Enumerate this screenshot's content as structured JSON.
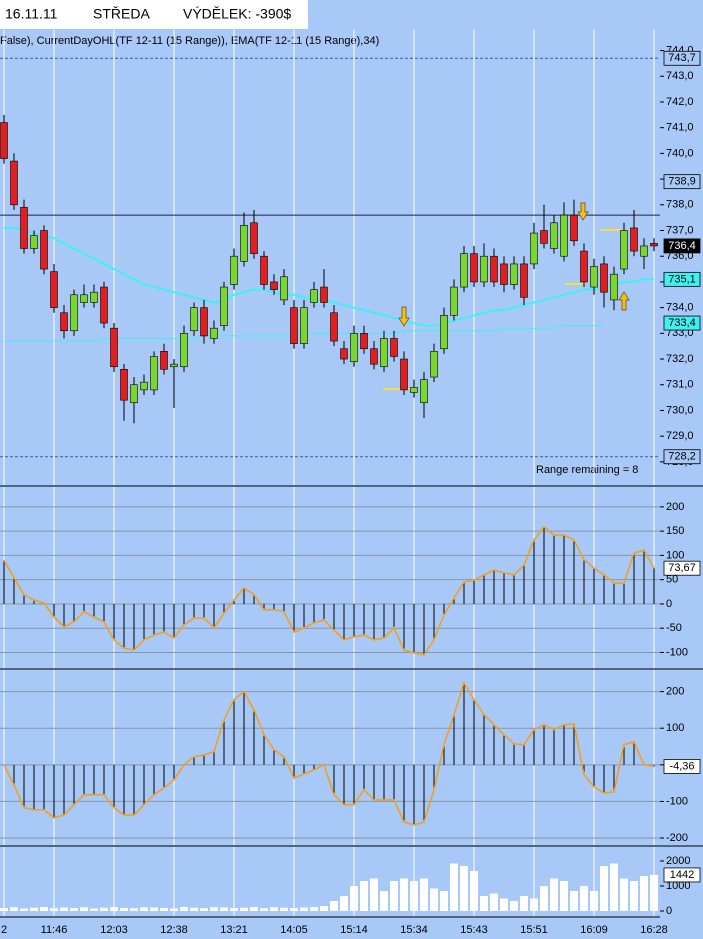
{
  "header": {
    "date": "16.11.11",
    "day": "STŘEDA",
    "profit": "VÝDĚLEK: -390$"
  },
  "chart_data": [
    {
      "type": "candlestick",
      "label": "False), CurrentDayOHL(TF 12-11 (15 Range)), EMA(TF 12-11 (15 Range),34)",
      "annotation": "Range remaining = 8",
      "up_color": "#7ad630",
      "down_color": "#e02020",
      "open": [
        741.2,
        739.7,
        737.9,
        736.3,
        737.0,
        735.4,
        733.8,
        733.1,
        734.2,
        734.2,
        734.8,
        733.2,
        731.6,
        730.3,
        730.8,
        730.8,
        732.3,
        731.7,
        731.7,
        733.1,
        734.0,
        732.8,
        733.3,
        734.9,
        735.8,
        737.3,
        736.0,
        735.0,
        734.3,
        734.0,
        732.6,
        734.2,
        734.8,
        733.8,
        732.4,
        731.9,
        733.0,
        732.4,
        731.7,
        732.8,
        732.0,
        730.7,
        730.3,
        731.3,
        732.4,
        733.7,
        734.8,
        736.1,
        735.0,
        736.0,
        735.7,
        734.9,
        735.7,
        735.7,
        737.0,
        736.3,
        736.0,
        737.6,
        736.2,
        734.8,
        735.7,
        734.3,
        735.5,
        737.1,
        736.0,
        736.5
      ],
      "high": [
        741.5,
        740.0,
        738.2,
        737.0,
        737.2,
        735.7,
        734.1,
        734.7,
        734.9,
        734.9,
        735.0,
        733.4,
        731.8,
        731.3,
        731.4,
        732.3,
        732.6,
        732.0,
        733.3,
        734.2,
        734.3,
        733.5,
        735.0,
        736.3,
        737.7,
        737.8,
        736.2,
        735.3,
        735.5,
        734.3,
        734.3,
        735.0,
        735.5,
        734.1,
        732.7,
        733.3,
        733.3,
        732.7,
        733.1,
        733.1,
        732.3,
        731.2,
        731.5,
        732.6,
        734.0,
        735.1,
        736.4,
        736.4,
        736.5,
        736.3,
        736.0,
        736.0,
        736.0,
        737.3,
        738.0,
        737.6,
        738.1,
        738.2,
        736.5,
        735.9,
        736.0,
        735.6,
        737.3,
        737.8,
        736.7,
        736.7
      ],
      "low": [
        739.6,
        737.8,
        736.1,
        736.1,
        735.3,
        733.8,
        732.8,
        732.9,
        734.0,
        734.0,
        733.2,
        731.5,
        729.6,
        729.5,
        730.6,
        730.6,
        731.4,
        730.1,
        731.5,
        732.9,
        732.6,
        732.6,
        733.1,
        734.7,
        735.6,
        735.9,
        734.7,
        734.5,
        734.1,
        732.4,
        732.4,
        734.0,
        734.0,
        732.5,
        731.8,
        731.7,
        732.2,
        731.6,
        731.5,
        731.9,
        730.6,
        730.5,
        729.7,
        731.1,
        732.2,
        733.5,
        734.6,
        734.8,
        734.8,
        734.8,
        734.6,
        734.7,
        734.1,
        735.5,
        736.3,
        736.1,
        735.8,
        736.4,
        734.8,
        734.5,
        734.0,
        733.9,
        735.3,
        736.0,
        735.5,
        736.2
      ],
      "close": [
        739.8,
        738.0,
        736.3,
        736.8,
        735.5,
        734.0,
        733.1,
        734.5,
        734.5,
        734.6,
        733.4,
        731.7,
        730.4,
        731.0,
        731.1,
        732.1,
        731.6,
        731.8,
        733.0,
        734.0,
        732.9,
        733.2,
        734.8,
        736.0,
        737.2,
        736.1,
        734.9,
        734.7,
        735.2,
        732.6,
        734.0,
        734.7,
        734.2,
        732.7,
        732.0,
        733.0,
        732.4,
        731.8,
        732.8,
        732.1,
        730.8,
        730.9,
        731.2,
        732.3,
        733.7,
        734.8,
        736.1,
        735.0,
        736.0,
        735.0,
        734.9,
        735.7,
        734.4,
        736.9,
        736.5,
        737.3,
        737.6,
        736.6,
        735.0,
        735.6,
        734.6,
        735.3,
        737.0,
        736.2,
        736.4,
        736.4
      ],
      "lines": [
        {
          "color": "#40f0f0",
          "width": 2,
          "values": [
            737.1,
            737.1,
            737.0,
            736.9,
            736.8,
            736.7,
            736.5,
            736.3,
            736.1,
            735.9,
            735.7,
            735.5,
            735.3,
            735.1,
            734.9,
            734.8,
            734.7,
            734.6,
            734.5,
            734.4,
            734.3,
            734.2,
            734.3,
            734.5,
            734.6,
            734.7,
            734.7,
            734.6,
            734.5,
            734.5,
            734.4,
            734.3,
            734.3,
            734.2,
            734.1,
            734.0,
            733.9,
            733.8,
            733.7,
            733.6,
            733.5,
            733.4,
            733.3,
            733.3,
            733.4,
            733.5,
            733.6,
            733.7,
            733.8,
            733.9,
            733.9,
            734.0,
            734.1,
            734.2,
            734.3,
            734.4,
            734.5,
            734.6,
            734.7,
            734.7,
            734.8,
            734.9,
            735.0,
            735.0,
            735.1,
            735.1
          ]
        },
        {
          "color": "#40f0f0",
          "width": 1,
          "values": [
            732.7,
            732.7,
            732.7,
            732.7,
            732.7,
            732.7,
            732.7,
            732.7,
            732.7,
            732.7,
            732.8,
            732.8,
            732.8,
            732.8,
            732.8,
            732.8,
            732.8,
            732.8,
            732.8,
            732.8,
            732.9,
            732.9,
            732.9,
            732.9,
            732.9,
            732.9,
            732.9,
            732.9,
            732.9,
            732.9,
            733.0,
            733.0,
            733.0,
            733.0,
            733.0,
            733.0,
            733.0,
            733.0,
            733.0,
            733.0,
            733.1,
            733.1,
            733.1,
            733.1,
            733.1,
            733.1,
            733.1,
            733.1,
            733.1,
            733.1,
            733.2,
            733.2,
            733.2,
            733.2,
            733.2,
            733.2,
            733.3,
            733.3,
            733.3,
            733.3,
            733.3,
            null,
            null,
            null,
            null,
            null
          ]
        }
      ],
      "levels": [
        {
          "value": 743.7,
          "style": "dashed",
          "color": "#3060b0"
        },
        {
          "value": 728.2,
          "style": "dashed",
          "color": "#3060b0"
        },
        {
          "value": 737.6,
          "style": "solid",
          "color": "#202040"
        }
      ],
      "markers": [
        {
          "value": 743.7,
          "label": "743,7",
          "color": "#a8c8f8",
          "text_color": "#000000"
        },
        {
          "value": 738.9,
          "label": "738,9",
          "color": "#a8c8f8",
          "text_color": "#000000"
        },
        {
          "value": 736.4,
          "label": "736,4",
          "color": "#000000",
          "text_color": "#ffffff"
        },
        {
          "value": 735.1,
          "label": "735,1",
          "color": "#40f0f0",
          "text_color": "#000000"
        },
        {
          "value": 733.4,
          "label": "733,4",
          "color": "#40f0f0",
          "text_color": "#000000"
        },
        {
          "value": 728.2,
          "label": "728,2",
          "color": "#a8c8f8",
          "text_color": "#000000"
        }
      ],
      "ylim": [
        727.1,
        744.8
      ],
      "yticks": [
        {
          "value": 744,
          "label": "744,0"
        },
        {
          "value": 743,
          "label": "743,0"
        },
        {
          "value": 742,
          "label": "742,0"
        },
        {
          "value": 741,
          "label": "741,0"
        },
        {
          "value": 740,
          "label": "740,0"
        },
        {
          "value": 739,
          "label": "739,0"
        },
        {
          "value": 738,
          "label": "738,0"
        },
        {
          "value": 737,
          "label": "737,0"
        },
        {
          "value": 736,
          "label": "736,0"
        },
        {
          "value": 735,
          "label": "735,0"
        },
        {
          "value": 734,
          "label": "734,0"
        },
        {
          "value": 733,
          "label": "733,0"
        },
        {
          "value": 732,
          "label": "732,0"
        },
        {
          "value": 731,
          "label": "731,0"
        },
        {
          "value": 730,
          "label": "730,0"
        },
        {
          "value": 729,
          "label": "729,0"
        },
        {
          "value": 728,
          "label": "728,0"
        }
      ],
      "grid": false
    },
    {
      "type": "oscillator",
      "color": "#f0a020",
      "grid": true,
      "values": [
        90,
        54,
        19,
        8,
        2,
        -27,
        -47,
        -37,
        -16,
        -27,
        -37,
        -74,
        -91,
        -95,
        -74,
        -64,
        -58,
        -70,
        -43,
        -29,
        -29,
        -49,
        -19,
        8,
        33,
        19,
        -12,
        -12,
        -16,
        -58,
        -49,
        -39,
        -33,
        -54,
        -74,
        -68,
        -64,
        -74,
        -70,
        -49,
        -95,
        -101,
        -105,
        -74,
        -23,
        12,
        45,
        49,
        60,
        70,
        64,
        60,
        80,
        132,
        159,
        142,
        142,
        132,
        91,
        74,
        60,
        43,
        43,
        105,
        111,
        73.67
      ],
      "markers": [
        {
          "value": 73.67,
          "label": "73,67",
          "color": "#ffffff",
          "text_color": "#000000"
        }
      ],
      "ylim": [
        -132,
        241
      ],
      "yticks": [
        200,
        150,
        100,
        50,
        0,
        -50,
        -100
      ]
    },
    {
      "type": "oscillator",
      "color": "#f0a020",
      "grid": true,
      "values": [
        0,
        -55,
        -117,
        -123,
        -123,
        -145,
        -137,
        -109,
        -82,
        -82,
        -82,
        -117,
        -137,
        -137,
        -109,
        -82,
        -63,
        -41,
        0,
        22,
        27,
        36,
        123,
        178,
        200,
        150,
        82,
        41,
        22,
        -36,
        -25,
        -14,
        0,
        -82,
        -109,
        -109,
        -68,
        -96,
        -96,
        -96,
        -156,
        -164,
        -156,
        -68,
        55,
        137,
        224,
        178,
        137,
        109,
        82,
        57,
        55,
        96,
        109,
        96,
        109,
        112,
        -27,
        -60,
        -77,
        -74,
        55,
        63,
        0,
        -4.36
      ],
      "markers": [
        {
          "value": -4.36,
          "label": "-4,36",
          "color": "#ffffff",
          "text_color": "#000000"
        }
      ],
      "ylim": [
        -219,
        259
      ],
      "yticks": [
        200,
        100,
        0,
        -100,
        -200
      ]
    },
    {
      "type": "volume",
      "color": "#ffffff",
      "grid": false,
      "categories": [
        "2",
        null,
        null,
        null,
        null,
        "11:46",
        null,
        null,
        null,
        null,
        null,
        "12:03",
        null,
        null,
        null,
        null,
        null,
        "12:38",
        null,
        null,
        null,
        null,
        null,
        "13:21",
        null,
        null,
        null,
        null,
        null,
        "14:05",
        null,
        null,
        null,
        null,
        null,
        "15:14",
        null,
        null,
        null,
        null,
        null,
        "15:34",
        null,
        null,
        null,
        null,
        null,
        "15:43",
        null,
        null,
        null,
        null,
        null,
        "15:51",
        null,
        null,
        null,
        null,
        null,
        "16:09",
        null,
        null,
        null,
        null,
        null,
        "16:28"
      ],
      "values": [
        120,
        150,
        100,
        130,
        160,
        110,
        140,
        120,
        150,
        100,
        130,
        160,
        120,
        110,
        150,
        140,
        120,
        100,
        160,
        130,
        110,
        150,
        140,
        120,
        130,
        160,
        110,
        150,
        130,
        120,
        140,
        160,
        200,
        400,
        600,
        1000,
        1200,
        1300,
        800,
        1200,
        1300,
        1200,
        1300,
        900,
        800,
        1900,
        1800,
        1600,
        600,
        700,
        500,
        400,
        600,
        500,
        1000,
        1300,
        1200,
        800,
        1000,
        800,
        1800,
        1900,
        1300,
        1200,
        1400,
        1442
      ],
      "markers": [
        {
          "value": 1442,
          "label": "1442",
          "color": "#ffffff",
          "text_color": "#000000"
        }
      ],
      "ylim": [
        -240,
        2560
      ],
      "yticks": [
        2000,
        1000,
        0
      ]
    }
  ]
}
